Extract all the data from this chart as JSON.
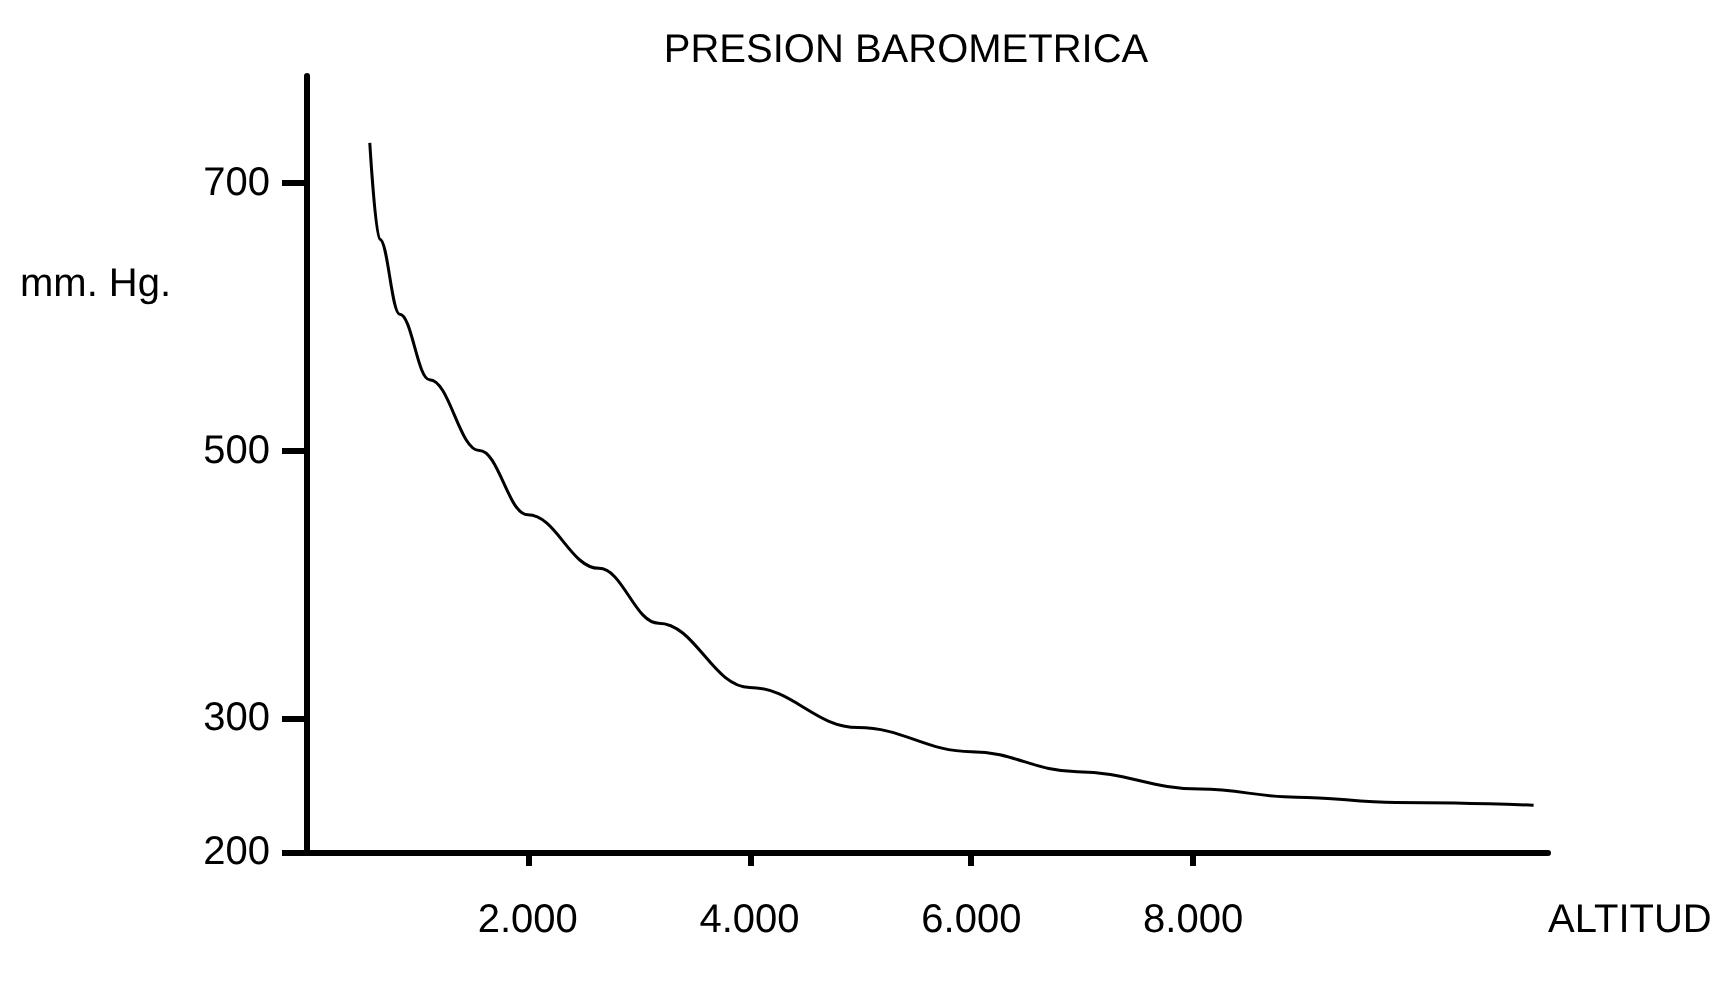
{
  "chart_data": {
    "type": "line",
    "title": "PRESION BAROMETRICA",
    "xlabel": "ALTITUD",
    "ylabel": "mm. Hg.",
    "x": [
      575,
      665,
      845,
      1114,
      1563,
      2000,
      2641,
      3180,
      4000,
      4978,
      6000,
      6955,
      8066,
      8930,
      9829,
      11070
    ],
    "series": [
      {
        "color": "#000000",
        "values": [
          730,
          658,
          602,
          553,
          500,
          452,
          412,
          371,
          323,
          293,
          275,
          260,
          247,
          241,
          237,
          235
        ]
      }
    ],
    "xlim": [
      0,
      11200
    ],
    "ylim": [
      200,
      780
    ],
    "xticks": [
      {
        "value": 2000,
        "label": "2.000"
      },
      {
        "value": 4000,
        "label": "4.000"
      },
      {
        "value": 6000,
        "label": "6.000"
      },
      {
        "value": 8000,
        "label": "8.000"
      }
    ],
    "yticks": [
      200,
      300,
      500,
      700
    ],
    "grid": false,
    "marker": "none",
    "line_style": "solid"
  }
}
